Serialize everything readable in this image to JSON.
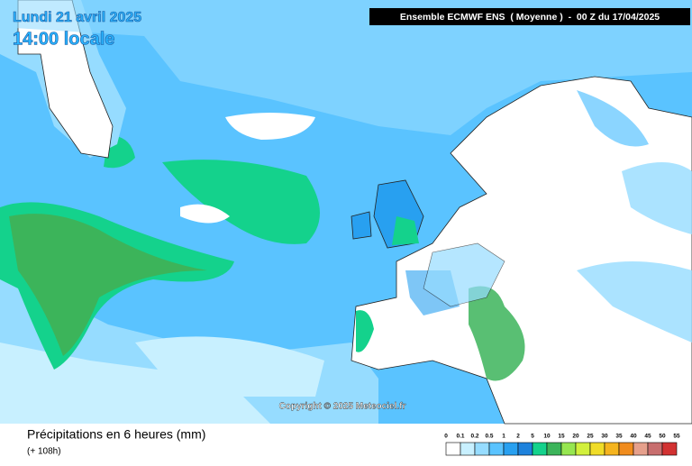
{
  "map": {
    "date": "Lundi 21 avril 2025",
    "time": "14:00 locale",
    "run": "Ensemble ECMWF ENS  ( Moyenne )  -  00 Z du 17/04/2025",
    "copyright": "Copyright © 2025 Meteociel.fr"
  },
  "footer": {
    "title": "Précipitations en 6 heures (mm)",
    "subtitle": "(+ 108h)"
  },
  "legend": {
    "levels": [
      0,
      0.1,
      0.2,
      0.5,
      1,
      2,
      5,
      10,
      15,
      20,
      25,
      30,
      35,
      40,
      45,
      50,
      55
    ],
    "colors": [
      "#ffffff",
      "#c8f0ff",
      "#96dcff",
      "#5ac3ff",
      "#28a0f0",
      "#1e82dc",
      "#14d28c",
      "#3cb45a",
      "#96e650",
      "#d2f03c",
      "#f0dc28",
      "#f5b41e",
      "#f08c1e",
      "#e6a08c",
      "#c86e6e",
      "#d23232"
    ]
  }
}
